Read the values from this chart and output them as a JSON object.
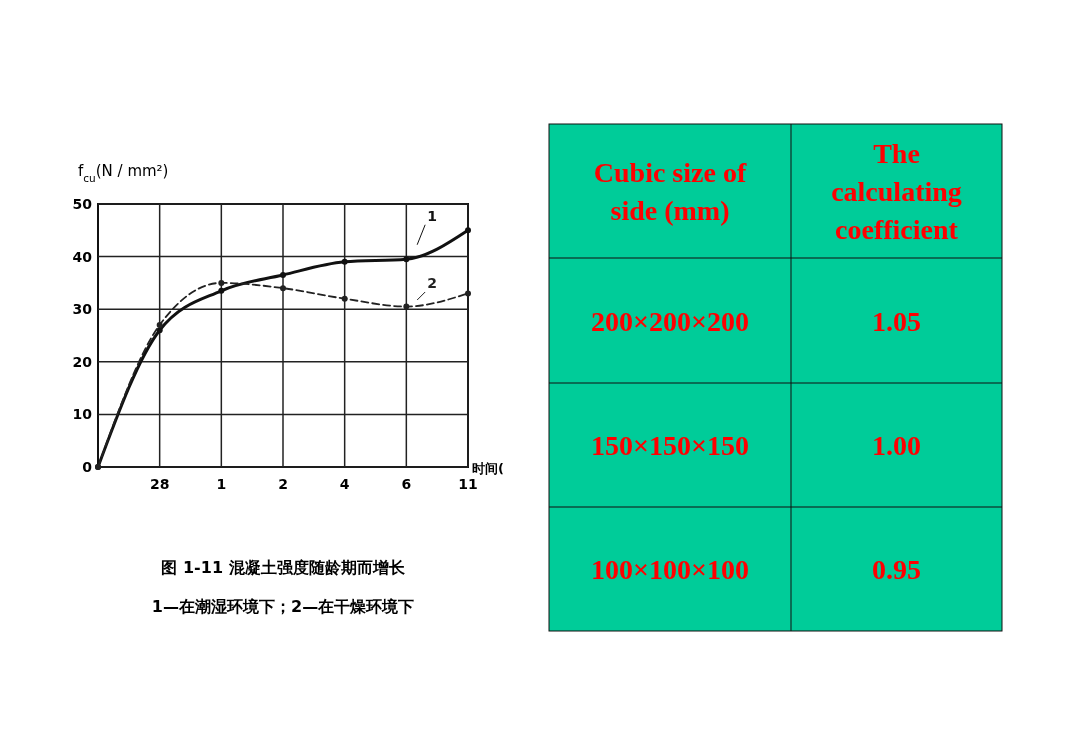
{
  "chart_data": [
    {
      "type": "line",
      "title": "图 1-11  混凝土强度随龄期而增长",
      "subtitle": "1—在潮湿环境下；2—在干燥环境下",
      "xlabel": "时间(",
      "ylabel": "f$_{cu}$(N / mm²)",
      "categories": [
        null,
        "28",
        "1",
        "2",
        "4",
        "6",
        "11"
      ],
      "ylim": [
        0,
        50
      ],
      "yticks": [
        0,
        10,
        20,
        30,
        40,
        50
      ],
      "grid": true,
      "marker": "circle",
      "series": [
        {
          "name": "1",
          "color": "#111111",
          "line_style": "solid",
          "values": [
            0,
            26,
            33.5,
            36.5,
            39,
            39.5,
            45
          ]
        },
        {
          "name": "2",
          "color": "#222222",
          "line_style": "dashed",
          "values": [
            0,
            27,
            35,
            34,
            32,
            30.5,
            33
          ]
        }
      ]
    },
    {
      "type": "other",
      "color": "#00cc99",
      "annotations": [
        "Cubic size of side  (mm)",
        "The calculating coefficient",
        "200×200×200",
        "1.05",
        "150×150×150",
        "1.00",
        "100×100×100",
        "0.95"
      ]
    }
  ]
}
